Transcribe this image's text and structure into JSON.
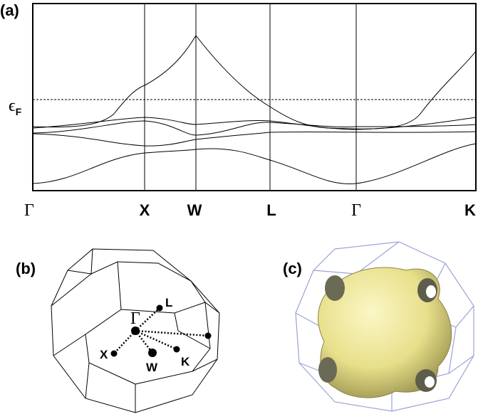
{
  "panel_a": {
    "label": "(a)",
    "fermi_symbol": "ϵ",
    "fermi_subscript": "F",
    "k_points": [
      "Γ",
      "X",
      "W",
      "L",
      "Γ",
      "K"
    ]
  },
  "panel_b": {
    "label": "(b)",
    "points": [
      "Γ",
      "L",
      "X",
      "W",
      "K"
    ]
  },
  "panel_c": {
    "label": "(c)"
  }
}
